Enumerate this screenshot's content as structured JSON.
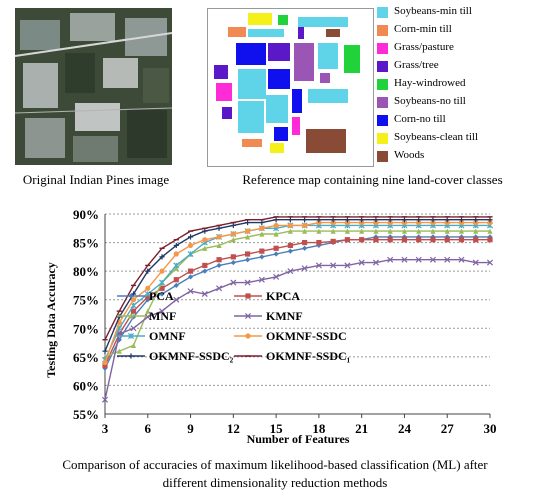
{
  "captions": {
    "pines": "Original Indian Pines image",
    "refmap": "Reference map containing nine land-cover classes",
    "chart_line1": "Comparison of accuracies of maximum likelihood-based classification (ML) after",
    "chart_line2": "different dimensionality reduction methods"
  },
  "classes": [
    {
      "name": "Soybeans-min till",
      "color": "#5fd3e8"
    },
    {
      "name": "Corn-min  till",
      "color": "#f08a52"
    },
    {
      "name": "Grass/pasture",
      "color": "#ff2bd6"
    },
    {
      "name": "Grass/tree",
      "color": "#5a18c8"
    },
    {
      "name": "Hay-windrowed",
      "color": "#22d23a"
    },
    {
      "name": "Soybeans-no till",
      "color": "#9a55b5"
    },
    {
      "name": "Corn-no till",
      "color": "#1010ee"
    },
    {
      "name": "Soybeans-clean till",
      "color": "#f6f01a"
    },
    {
      "name": "Woods",
      "color": "#8a4b36"
    }
  ],
  "chart_data": {
    "type": "line",
    "title": "",
    "xlabel": "Number of Features",
    "ylabel": "Testing Data Accuracy",
    "x": [
      3,
      4,
      5,
      6,
      7,
      8,
      9,
      10,
      11,
      12,
      13,
      14,
      15,
      16,
      17,
      18,
      19,
      20,
      21,
      22,
      23,
      24,
      25,
      26,
      27,
      28,
      29,
      30
    ],
    "xticks": [
      "3",
      "6",
      "9",
      "12",
      "15",
      "18",
      "21",
      "24",
      "27",
      "30"
    ],
    "xlim": [
      3,
      30
    ],
    "yticks": [
      "55%",
      "60%",
      "65%",
      "70%",
      "75%",
      "80%",
      "85%",
      "90%"
    ],
    "ylim": [
      55,
      90
    ],
    "grid": "horizontal dashed",
    "legend_position": "inside lower-left",
    "series": [
      {
        "name": "PCA",
        "color": "#4a7ebb",
        "marker": "diamond",
        "values": [
          63,
          68,
          72,
          75,
          76,
          77.5,
          79,
          80,
          81,
          81.5,
          82,
          82.5,
          83,
          83.5,
          84,
          84.5,
          85,
          85.5,
          85.5,
          86,
          86,
          86,
          86,
          86,
          86,
          86,
          86,
          86
        ]
      },
      {
        "name": "KPCA",
        "color": "#c0504d",
        "marker": "square",
        "values": [
          63.5,
          69,
          73,
          75.5,
          77,
          78.5,
          80,
          81,
          82,
          82.5,
          83,
          83.5,
          84,
          84.5,
          85,
          85,
          85.2,
          85.5,
          85.5,
          85.5,
          85.5,
          85.5,
          85.5,
          85.5,
          85.5,
          85.5,
          85.5,
          85.5
        ]
      },
      {
        "name": "MNF",
        "color": "#9bbb59",
        "marker": "triangle",
        "values": [
          65,
          66,
          67,
          73,
          78,
          80.5,
          83,
          84,
          84.5,
          85.5,
          86,
          86.5,
          86.5,
          87,
          87,
          87,
          87,
          87,
          87,
          87,
          87,
          87,
          87,
          87,
          87,
          87,
          87,
          87
        ]
      },
      {
        "name": "KMNF",
        "color": "#8064a2",
        "marker": "x",
        "values": [
          57.5,
          69,
          70,
          72,
          73,
          75,
          76.5,
          76,
          77,
          78,
          78,
          78.5,
          79,
          80,
          80.5,
          81,
          81,
          81,
          81.5,
          81.5,
          82,
          82,
          82,
          82,
          82,
          82,
          81.5,
          81.5
        ]
      },
      {
        "name": "OMNF",
        "color": "#4bacc6",
        "marker": "star",
        "values": [
          64.5,
          70,
          74,
          76,
          78,
          81,
          83,
          85,
          86,
          86.5,
          87,
          87.5,
          87.5,
          88,
          88,
          88,
          88,
          88,
          88,
          88,
          88,
          88,
          88,
          88,
          88,
          88,
          88,
          88
        ]
      },
      {
        "name": "OKMNF-SSDC",
        "color": "#f79646",
        "marker": "circle",
        "values": [
          64,
          71,
          75,
          77,
          80,
          83,
          84.5,
          85.5,
          86,
          86.5,
          87,
          87.5,
          88,
          88,
          88,
          88.5,
          88.5,
          88.5,
          88.5,
          88.5,
          88.5,
          88.5,
          88.5,
          88.5,
          88.5,
          88.5,
          88.5,
          88.5
        ]
      },
      {
        "name": "OKMNF-SSDC₂",
        "color": "#1f3864",
        "marker": "plus",
        "values": [
          66,
          72,
          76,
          80,
          82.5,
          84.5,
          86,
          87,
          87.5,
          88,
          88.5,
          88.5,
          89,
          89,
          89,
          89,
          89,
          89,
          89,
          89,
          89,
          89,
          89,
          89,
          89,
          89,
          89,
          89
        ]
      },
      {
        "name": "OKMNF-SSDC₁",
        "color": "#7b1f2e",
        "marker": "dash",
        "values": [
          68,
          73,
          77.5,
          81,
          84,
          85.5,
          87,
          87.5,
          88,
          88.5,
          89,
          89,
          89.5,
          89.5,
          89.5,
          89.5,
          89.5,
          89.5,
          89.5,
          89.5,
          89.5,
          89.5,
          89.5,
          89.5,
          89.5,
          89.5,
          89.5,
          89.5
        ]
      }
    ]
  }
}
